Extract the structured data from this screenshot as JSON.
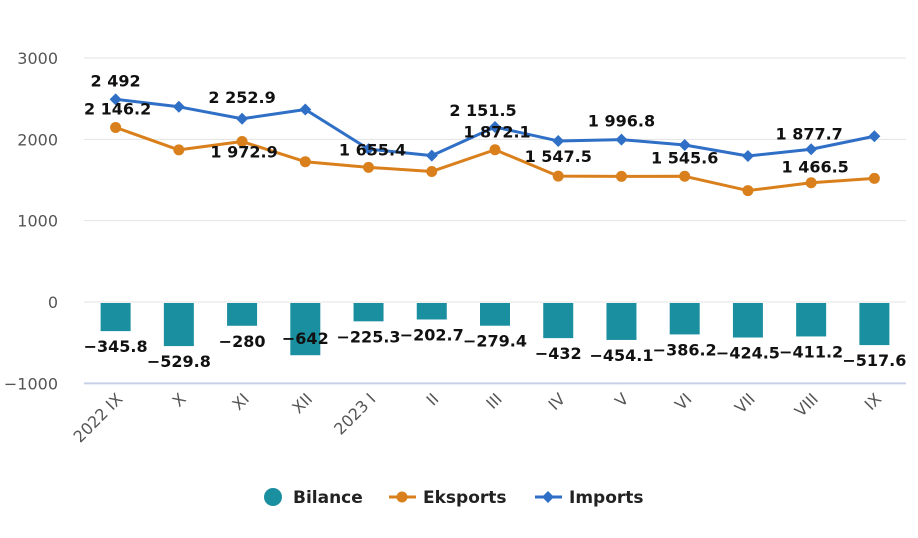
{
  "chart_data": {
    "type": "bar+line",
    "categories": [
      "2022 IX",
      "X",
      "XI",
      "XII",
      "2023 I",
      "II",
      "III",
      "IV",
      "V",
      "VI",
      "VII",
      "VIII",
      "IX"
    ],
    "series": [
      {
        "name": "Bilance",
        "type": "bar",
        "color": "#1a8f9f",
        "values": [
          -345.8,
          -529.8,
          -280,
          -642,
          -225.3,
          -202.7,
          -279.4,
          -432,
          -454.1,
          -386.2,
          -424.5,
          -411.2,
          -517.6
        ],
        "labels": [
          "−345.8",
          "−529.8",
          "−280",
          "−642",
          "−225.3",
          "−202.7",
          "−279.4",
          "−432",
          "−454.1",
          "−386.2",
          "−424.5",
          "−411.2",
          "−517.6"
        ]
      },
      {
        "name": "Eksports",
        "type": "line",
        "color": "#d9801c",
        "values": [
          2146.2,
          1870,
          1972.9,
          1725,
          1655.4,
          1605,
          1872.1,
          1547.5,
          1545,
          1545.6,
          1370,
          1466.5,
          1520
        ],
        "labels": [
          "2 146.2",
          "",
          "1 972.9",
          "",
          "1 655.4",
          "",
          "1 872.1",
          "1 547.5",
          "",
          "1 545.6",
          "",
          "1 466.5",
          ""
        ]
      },
      {
        "name": "Imports",
        "type": "line",
        "color": "#2f6fc6",
        "values": [
          2492,
          2400,
          2252.9,
          2367,
          1880,
          1800,
          2151.5,
          1980,
          1996.8,
          1930,
          1795,
          1877.7,
          2038
        ],
        "labels": [
          "2 492",
          "",
          "2 252.9",
          "",
          "",
          "",
          "2 151.5",
          "",
          "1 996.8",
          "",
          "",
          "1 877.7",
          ""
        ]
      }
    ],
    "y_ticks": [
      "3000",
      "2000",
      "1000",
      "0",
      "−1000"
    ],
    "ylim": [
      -1000,
      3000
    ],
    "grid": true,
    "legend": "bottom-center",
    "title": "",
    "xlabel": "",
    "ylabel": ""
  }
}
